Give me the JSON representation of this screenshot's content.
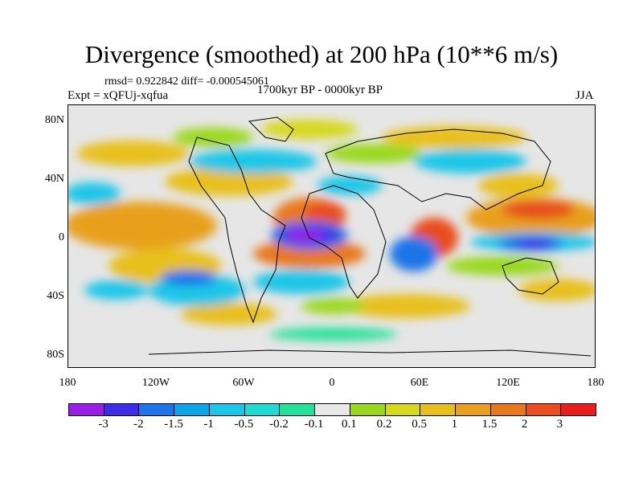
{
  "title": "Divergence (smoothed) at 200 hPa (10**6 m/s)",
  "stats": "rmsd= 0.922842 diff= -0.000545061",
  "experiment": "Expt = xQFUj-xqfua",
  "period": "1700kyr BP - 0000kyr BP",
  "season": "JJA",
  "lat_ticks": [
    "80N",
    "40N",
    "0",
    "40S",
    "80S"
  ],
  "lon_ticks": [
    "180",
    "120W",
    "60W",
    "0",
    "60E",
    "120E",
    "180"
  ],
  "colorbar": {
    "colors": [
      "#9b1ee8",
      "#3c2ee8",
      "#1e74e8",
      "#0da4e8",
      "#1cc6e8",
      "#1fdcd2",
      "#24e09a",
      "#e8e8e8",
      "#9ad81e",
      "#d6d81e",
      "#e8c01e",
      "#e8a01e",
      "#e8781e",
      "#e84e1e",
      "#e81e1e"
    ],
    "labels": [
      "-3",
      "-2",
      "-1.5",
      "-1",
      "-0.5",
      "-0.2",
      "-0.1",
      "0.1",
      "0.2",
      "0.5",
      "1",
      "1.5",
      "2",
      "3"
    ]
  }
}
